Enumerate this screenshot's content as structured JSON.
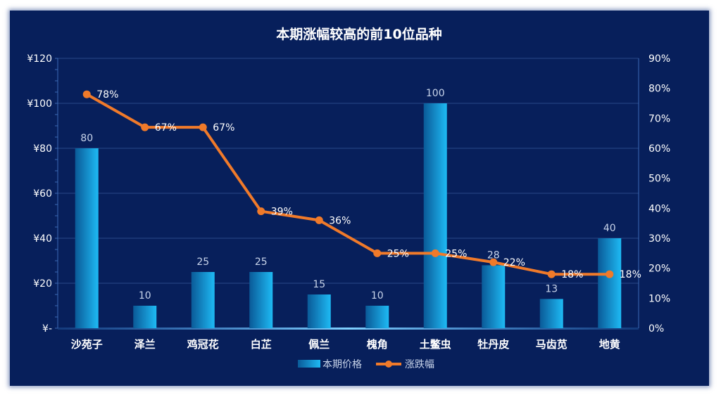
{
  "chart_data": {
    "type": "bar+line",
    "title": "本期涨幅较高的前10位品种",
    "categories": [
      "沙苑子",
      "泽兰",
      "鸡冠花",
      "白芷",
      "佩兰",
      "槐角",
      "土鳖虫",
      "牡丹皮",
      "马齿苋",
      "地黄"
    ],
    "series": [
      {
        "name": "本期价格",
        "type": "bar",
        "axis": "left",
        "values": [
          80,
          10,
          25,
          25,
          15,
          10,
          100,
          28,
          13,
          40
        ],
        "labels": [
          "80",
          "10",
          "25",
          "25",
          "15",
          "10",
          "100",
          "28",
          "13",
          "40"
        ]
      },
      {
        "name": "涨跌幅",
        "type": "line",
        "axis": "right",
        "values": [
          78,
          67,
          67,
          39,
          36,
          25,
          25,
          22,
          18,
          18
        ],
        "labels": [
          "78%",
          "67%",
          "67%",
          "39%",
          "36%",
          "25%",
          "25%",
          "22%",
          "18%",
          "18%"
        ]
      }
    ],
    "y_left": {
      "ylim": [
        0,
        120
      ],
      "ticks": [
        0,
        20,
        40,
        60,
        80,
        100,
        120
      ],
      "tick_labels": [
        "¥-",
        "¥20",
        "¥40",
        "¥60",
        "¥80",
        "¥100",
        "¥120"
      ]
    },
    "y_right": {
      "ylim": [
        0,
        90
      ],
      "ticks": [
        0,
        10,
        20,
        30,
        40,
        50,
        60,
        70,
        80,
        90
      ],
      "tick_labels": [
        "0%",
        "10%",
        "20%",
        "30%",
        "40%",
        "50%",
        "60%",
        "70%",
        "80%",
        "90%"
      ]
    },
    "grid": true,
    "legend_position": "bottom",
    "colors": {
      "background": "#071f5b",
      "bar_light": "#1fb6f0",
      "bar_dark": "#0a5fa0",
      "line": "#f07a2a",
      "grid": "#2a4a8a",
      "text": "#ffffff",
      "label_text": "#c8d4ea"
    }
  }
}
